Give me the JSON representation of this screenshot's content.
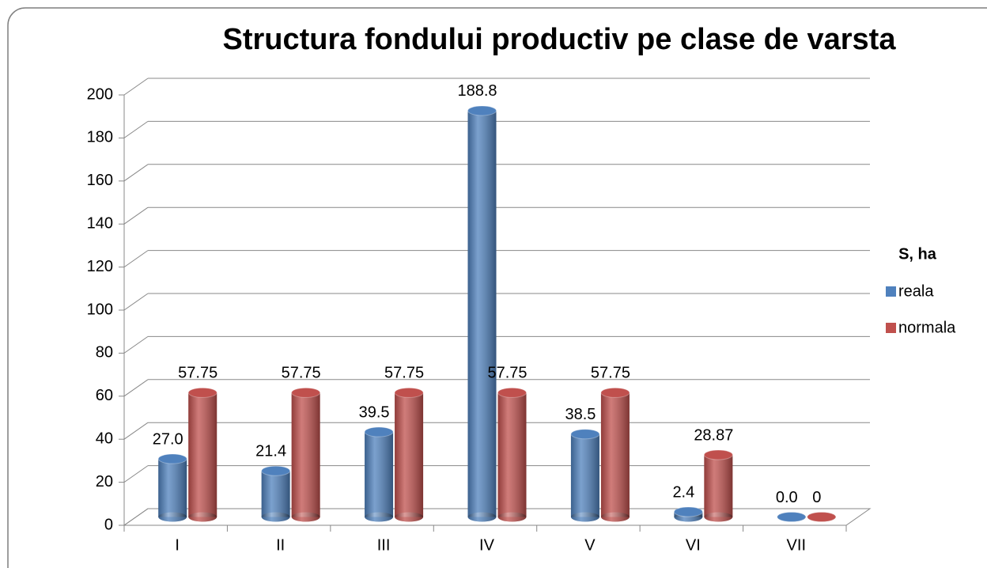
{
  "chart_data": {
    "type": "bar3d",
    "title": "Structura fondului productiv pe clase de varsta",
    "categories": [
      "I",
      "II",
      "III",
      "IV",
      "V",
      "VI",
      "VII"
    ],
    "series": [
      {
        "name": "reala",
        "color": "#4f81bd",
        "values": [
          27.0,
          21.4,
          39.5,
          188.8,
          38.5,
          2.4,
          0.0
        ],
        "value_labels": [
          "27.0",
          "21.4",
          "39.5",
          "188.8",
          "38.5",
          "2.4",
          "0.0"
        ]
      },
      {
        "name": "normala",
        "color": "#c0504d",
        "values": [
          57.75,
          57.75,
          57.75,
          57.75,
          57.75,
          28.87,
          0
        ]
      }
    ],
    "legend_title": "S, ha",
    "legend": "right",
    "ylim": [
      0,
      200
    ],
    "yticks": [
      0,
      20,
      40,
      60,
      80,
      100,
      120,
      140,
      160,
      180,
      200
    ],
    "grid": true
  }
}
